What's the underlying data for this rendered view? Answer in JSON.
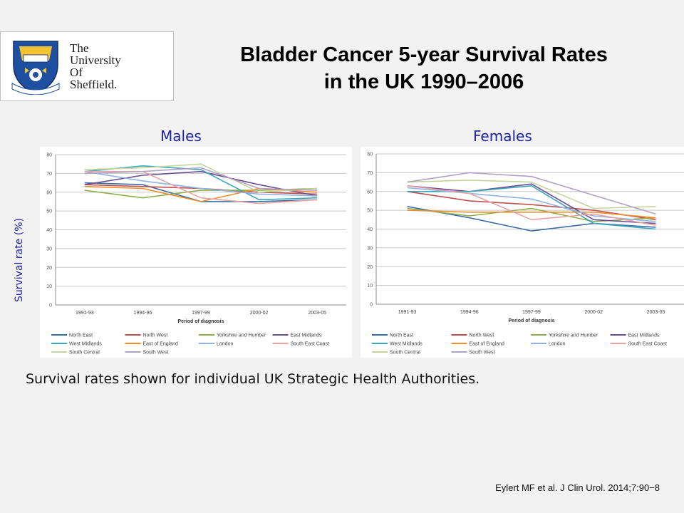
{
  "slide": {
    "title_line1": "Bladder Cancer 5-year Survival Rates",
    "title_line2": "in the UK 1990–2006",
    "caption": "Survival rates shown for individual UK Strategic Health Authorities.",
    "citation": "Eylert MF et al. J Clin Urol. 2014;7:90−8",
    "y_axis_label": "Survival rate (%)"
  },
  "logo": {
    "line1": "The",
    "line2": "University",
    "line3": "Of",
    "line4": "Sheffield.",
    "icon": "university-crest-icon"
  },
  "chart_data": [
    {
      "type": "line",
      "panel_label": "Males",
      "xlabel": "Period of diagnosis",
      "categories": [
        "1991-93",
        "1994-96",
        "1997-99",
        "2000-02",
        "2003-05"
      ],
      "ylim": [
        0,
        80
      ],
      "yticks": [
        0,
        10,
        20,
        30,
        40,
        50,
        60,
        70,
        80
      ],
      "grid": true,
      "legend_position": "bottom",
      "series": [
        {
          "name": "North East",
          "color": "#3a6ea5",
          "values": [
            65,
            64,
            55,
            55,
            56
          ]
        },
        {
          "name": "North West",
          "color": "#c0504d",
          "values": [
            64,
            63,
            62,
            60,
            59
          ]
        },
        {
          "name": "Yorkshire and Humber",
          "color": "#8fb04e",
          "values": [
            61,
            57,
            61,
            61,
            62
          ]
        },
        {
          "name": "East Midlands",
          "color": "#6a4c93",
          "values": [
            64,
            69,
            71,
            64,
            58
          ]
        },
        {
          "name": "West Midlands",
          "color": "#3aa6b9",
          "values": [
            71,
            74,
            72,
            56,
            57
          ]
        },
        {
          "name": "East of England",
          "color": "#f08c2c",
          "values": [
            63,
            62,
            55,
            62,
            60
          ]
        },
        {
          "name": "London",
          "color": "#8db3e2",
          "values": [
            71,
            66,
            62,
            59,
            58
          ]
        },
        {
          "name": "South East Coast",
          "color": "#e9a3a2",
          "values": [
            71,
            71,
            57,
            54,
            56
          ]
        },
        {
          "name": "South Central",
          "color": "#c3d69b",
          "values": [
            72,
            73,
            75,
            60,
            62
          ]
        },
        {
          "name": "South West",
          "color": "#b1a0c7",
          "values": [
            70,
            71,
            73,
            62,
            61
          ]
        }
      ]
    },
    {
      "type": "line",
      "panel_label": "Females",
      "xlabel": "Period of diagnosis",
      "categories": [
        "1991-93",
        "1994-96",
        "1997-99",
        "2000-02",
        "2003-05"
      ],
      "ylim": [
        0,
        80
      ],
      "yticks": [
        0,
        10,
        20,
        30,
        40,
        50,
        60,
        70,
        80
      ],
      "grid": true,
      "legend_position": "bottom",
      "series": [
        {
          "name": "North East",
          "color": "#3a6ea5",
          "values": [
            52,
            46,
            39,
            43,
            41
          ]
        },
        {
          "name": "North West",
          "color": "#c0504d",
          "values": [
            60,
            55,
            53,
            50,
            45
          ]
        },
        {
          "name": "Yorkshire and Humber",
          "color": "#8fb04e",
          "values": [
            51,
            47,
            51,
            44,
            46
          ]
        },
        {
          "name": "East Midlands",
          "color": "#6a4c93",
          "values": [
            63,
            60,
            64,
            45,
            43
          ]
        },
        {
          "name": "West Midlands",
          "color": "#3aa6b9",
          "values": [
            60,
            60,
            63,
            43,
            40
          ]
        },
        {
          "name": "East of England",
          "color": "#f08c2c",
          "values": [
            50,
            49,
            49,
            49,
            46
          ]
        },
        {
          "name": "London",
          "color": "#8db3e2",
          "values": [
            62,
            59,
            56,
            47,
            44
          ]
        },
        {
          "name": "South East Coast",
          "color": "#e9a3a2",
          "values": [
            63,
            59,
            45,
            48,
            42
          ]
        },
        {
          "name": "South Central",
          "color": "#c3d69b",
          "values": [
            65,
            66,
            65,
            51,
            52
          ]
        },
        {
          "name": "South West",
          "color": "#b1a0c7",
          "values": [
            65,
            70,
            68,
            58,
            48
          ]
        }
      ]
    }
  ]
}
